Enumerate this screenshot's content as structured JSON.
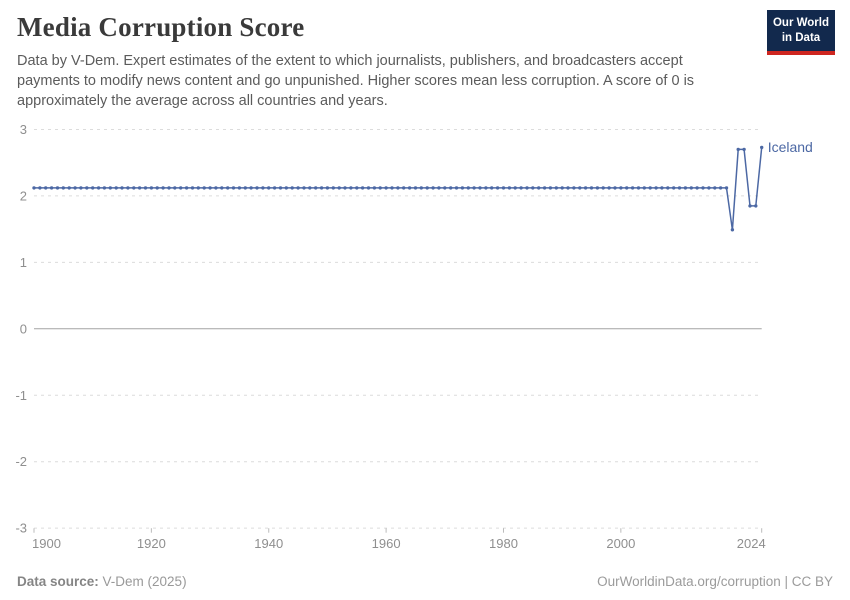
{
  "header": {
    "title": "Media Corruption Score",
    "subtitle": "Data by V-Dem. Expert estimates of the extent to which journalists, publishers, and broadcasters accept payments to modify news content and go unpunished. Higher scores mean less corruption. A score of 0 is approximately the average across all countries and years."
  },
  "logo": {
    "line1": "Our World",
    "line2": "in Data"
  },
  "footer": {
    "source_label": "Data source:",
    "source_value": " V-Dem (2025)",
    "right": "OurWorldinData.org/corruption | CC BY"
  },
  "colors": {
    "line": "#4C68A4",
    "title_text": "#3A3A3A",
    "subtitle_text": "#5B5B5B",
    "axis_label": "#8F8F8F",
    "grid": "#DCDCDC",
    "zero_line": "#A3A3A3",
    "tick": "#BBBBBB",
    "logo_bg": "#12294D",
    "logo_red": "#CE2620",
    "footer_text": "#999999"
  },
  "chart_data": {
    "type": "line",
    "title": "Media Corruption Score",
    "xlabel": "",
    "ylabel": "",
    "xlim": [
      1900,
      2024
    ],
    "ylim": [
      -3,
      3
    ],
    "yticks": [
      3,
      2,
      1,
      0,
      -1,
      -2,
      -3
    ],
    "xticks": [
      1900,
      1920,
      1940,
      1960,
      1980,
      2000,
      2024
    ],
    "grid": "horizontal dashed, solid line at 0",
    "legend_position": "label at end of line",
    "series": [
      {
        "name": "Iceland",
        "points": [
          [
            1900,
            2.12
          ],
          [
            1901,
            2.12
          ],
          [
            1902,
            2.12
          ],
          [
            1903,
            2.12
          ],
          [
            1904,
            2.12
          ],
          [
            1905,
            2.12
          ],
          [
            1906,
            2.12
          ],
          [
            1907,
            2.12
          ],
          [
            1908,
            2.12
          ],
          [
            1909,
            2.12
          ],
          [
            1910,
            2.12
          ],
          [
            1911,
            2.12
          ],
          [
            1912,
            2.12
          ],
          [
            1913,
            2.12
          ],
          [
            1914,
            2.12
          ],
          [
            1915,
            2.12
          ],
          [
            1916,
            2.12
          ],
          [
            1917,
            2.12
          ],
          [
            1918,
            2.12
          ],
          [
            1919,
            2.12
          ],
          [
            1920,
            2.12
          ],
          [
            1921,
            2.12
          ],
          [
            1922,
            2.12
          ],
          [
            1923,
            2.12
          ],
          [
            1924,
            2.12
          ],
          [
            1925,
            2.12
          ],
          [
            1926,
            2.12
          ],
          [
            1927,
            2.12
          ],
          [
            1928,
            2.12
          ],
          [
            1929,
            2.12
          ],
          [
            1930,
            2.12
          ],
          [
            1931,
            2.12
          ],
          [
            1932,
            2.12
          ],
          [
            1933,
            2.12
          ],
          [
            1934,
            2.12
          ],
          [
            1935,
            2.12
          ],
          [
            1936,
            2.12
          ],
          [
            1937,
            2.12
          ],
          [
            1938,
            2.12
          ],
          [
            1939,
            2.12
          ],
          [
            1940,
            2.12
          ],
          [
            1941,
            2.12
          ],
          [
            1942,
            2.12
          ],
          [
            1943,
            2.12
          ],
          [
            1944,
            2.12
          ],
          [
            1945,
            2.12
          ],
          [
            1946,
            2.12
          ],
          [
            1947,
            2.12
          ],
          [
            1948,
            2.12
          ],
          [
            1949,
            2.12
          ],
          [
            1950,
            2.12
          ],
          [
            1951,
            2.12
          ],
          [
            1952,
            2.12
          ],
          [
            1953,
            2.12
          ],
          [
            1954,
            2.12
          ],
          [
            1955,
            2.12
          ],
          [
            1956,
            2.12
          ],
          [
            1957,
            2.12
          ],
          [
            1958,
            2.12
          ],
          [
            1959,
            2.12
          ],
          [
            1960,
            2.12
          ],
          [
            1961,
            2.12
          ],
          [
            1962,
            2.12
          ],
          [
            1963,
            2.12
          ],
          [
            1964,
            2.12
          ],
          [
            1965,
            2.12
          ],
          [
            1966,
            2.12
          ],
          [
            1967,
            2.12
          ],
          [
            1968,
            2.12
          ],
          [
            1969,
            2.12
          ],
          [
            1970,
            2.12
          ],
          [
            1971,
            2.12
          ],
          [
            1972,
            2.12
          ],
          [
            1973,
            2.12
          ],
          [
            1974,
            2.12
          ],
          [
            1975,
            2.12
          ],
          [
            1976,
            2.12
          ],
          [
            1977,
            2.12
          ],
          [
            1978,
            2.12
          ],
          [
            1979,
            2.12
          ],
          [
            1980,
            2.12
          ],
          [
            1981,
            2.12
          ],
          [
            1982,
            2.12
          ],
          [
            1983,
            2.12
          ],
          [
            1984,
            2.12
          ],
          [
            1985,
            2.12
          ],
          [
            1986,
            2.12
          ],
          [
            1987,
            2.12
          ],
          [
            1988,
            2.12
          ],
          [
            1989,
            2.12
          ],
          [
            1990,
            2.12
          ],
          [
            1991,
            2.12
          ],
          [
            1992,
            2.12
          ],
          [
            1993,
            2.12
          ],
          [
            1994,
            2.12
          ],
          [
            1995,
            2.12
          ],
          [
            1996,
            2.12
          ],
          [
            1997,
            2.12
          ],
          [
            1998,
            2.12
          ],
          [
            1999,
            2.12
          ],
          [
            2000,
            2.12
          ],
          [
            2001,
            2.12
          ],
          [
            2002,
            2.12
          ],
          [
            2003,
            2.12
          ],
          [
            2004,
            2.12
          ],
          [
            2005,
            2.12
          ],
          [
            2006,
            2.12
          ],
          [
            2007,
            2.12
          ],
          [
            2008,
            2.12
          ],
          [
            2009,
            2.12
          ],
          [
            2010,
            2.12
          ],
          [
            2011,
            2.12
          ],
          [
            2012,
            2.12
          ],
          [
            2013,
            2.12
          ],
          [
            2014,
            2.12
          ],
          [
            2015,
            2.12
          ],
          [
            2016,
            2.12
          ],
          [
            2017,
            2.12
          ],
          [
            2018,
            2.12
          ],
          [
            2019,
            1.49
          ],
          [
            2020,
            2.7
          ],
          [
            2021,
            2.7
          ],
          [
            2022,
            1.85
          ],
          [
            2023,
            1.85
          ],
          [
            2024,
            2.73
          ]
        ]
      }
    ]
  }
}
